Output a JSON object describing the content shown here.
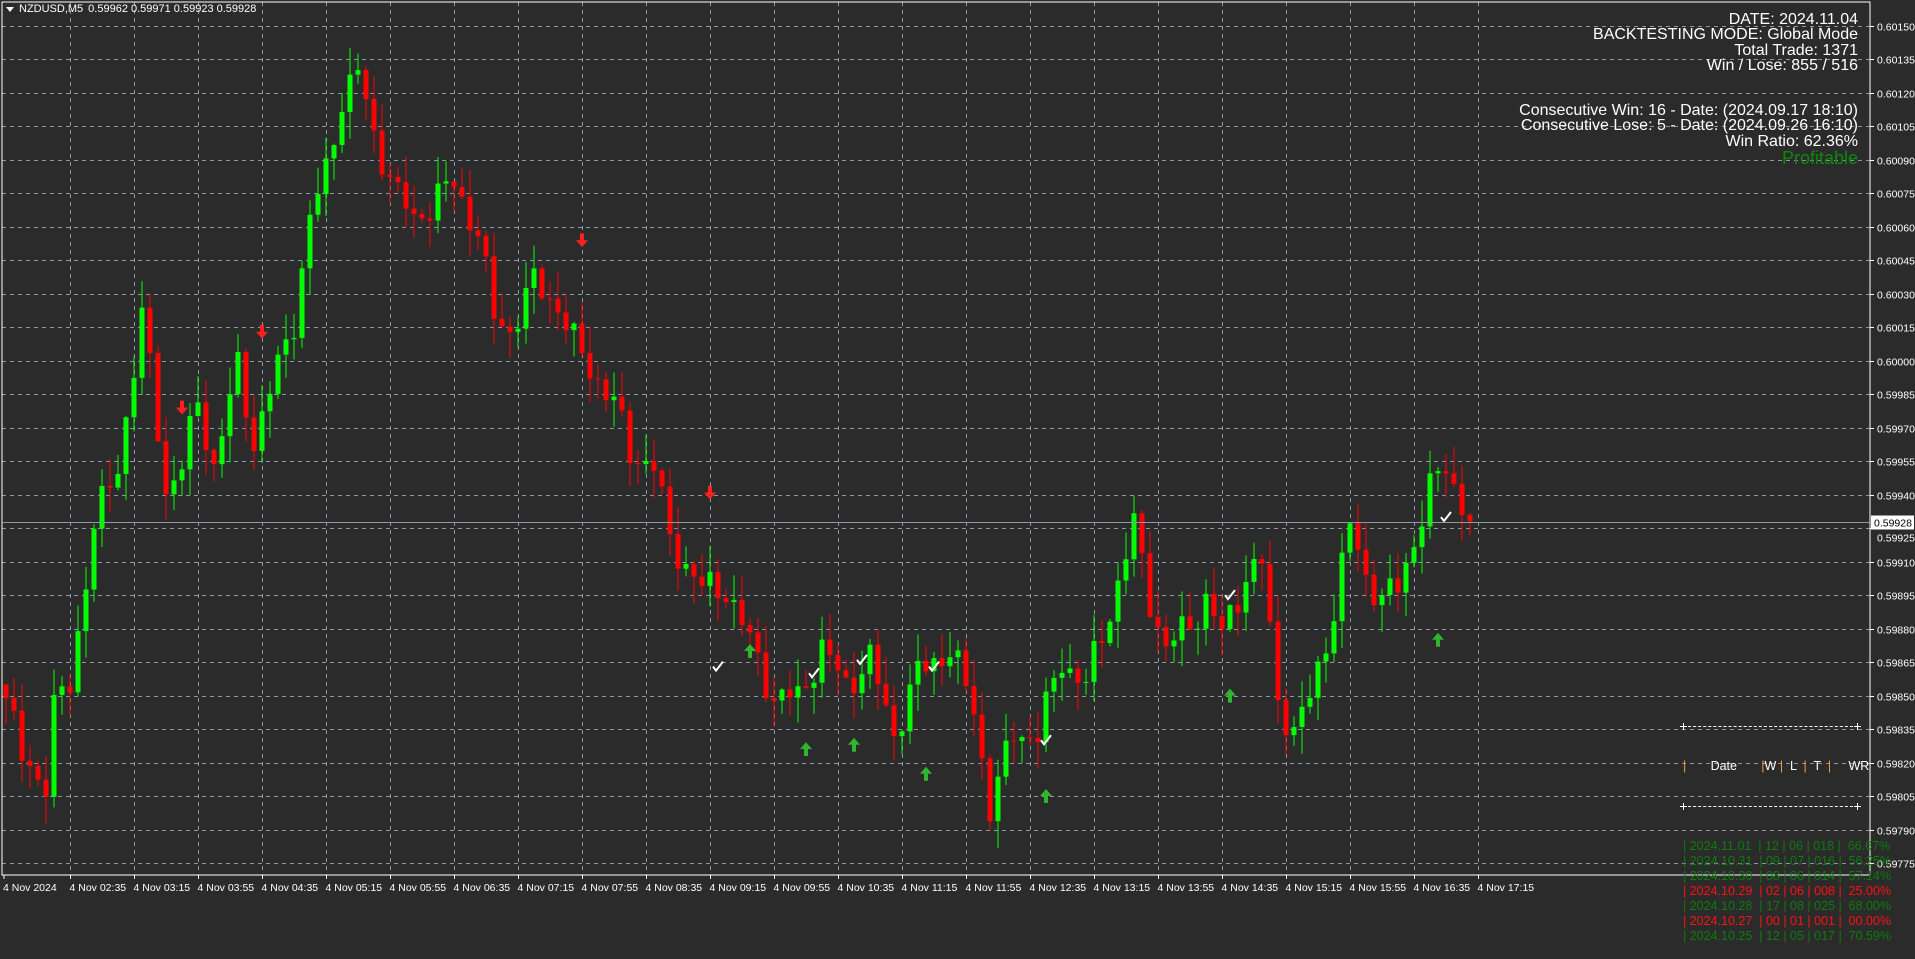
{
  "window": {
    "symbol": "NZDUSD,M5",
    "ohlc": "0.59962 0.59971 0.59923 0.59928",
    "menu_icon": "triangle-down-icon"
  },
  "info_panel": {
    "date": "DATE: 2024.11.04",
    "mode": "BACKTESTING MODE: Global Mode",
    "total_trade": "Total Trade: 1371",
    "win_lose": "Win / Lose: 855 / 516",
    "consecutive_win": "Consecutive Win: 16 - Date: (2024.09.17 18:10)",
    "consecutive_lose": "Consecutive Lose: 5 - Date: (2024.09.26 16:10)",
    "win_ratio": "Win Ratio: 62.36%",
    "status": "Profitable",
    "status_color": "#0a8a0a"
  },
  "stats_table": {
    "headers": [
      "Date",
      "W",
      "L",
      "T",
      "WR"
    ],
    "rows": [
      {
        "date": "2024.11.01",
        "w": "12",
        "l": "06",
        "t": "018",
        "wr": "66.67%",
        "result": "win"
      },
      {
        "date": "2024.10.31",
        "w": "09",
        "l": "07",
        "t": "016",
        "wr": "56.25%",
        "result": "win"
      },
      {
        "date": "2024.10.30",
        "w": "08",
        "l": "06",
        "t": "014",
        "wr": "57.14%",
        "result": "win"
      },
      {
        "date": "2024.10.29",
        "w": "02",
        "l": "06",
        "t": "008",
        "wr": "25.00%",
        "result": "lose"
      },
      {
        "date": "2024.10.28",
        "w": "17",
        "l": "08",
        "t": "025",
        "wr": "68.00%",
        "result": "win"
      },
      {
        "date": "2024.10.27",
        "w": "00",
        "l": "01",
        "t": "001",
        "wr": "00.00%",
        "result": "lose"
      },
      {
        "date": "2024.10.25",
        "w": "12",
        "l": "05",
        "t": "017",
        "wr": "70.59%",
        "result": "win"
      }
    ]
  },
  "chart_data": {
    "type": "candlestick",
    "symbol": "NZDUSD",
    "timeframe": "M5",
    "date": "4 Nov 2024",
    "current_price": 0.59928,
    "ylim": [
      0.5977,
      0.6016
    ],
    "grid": true,
    "colors": {
      "background": "#2b2b2b",
      "bull": "#00ff00",
      "bear": "#ff0000",
      "grid": "#8c96a6",
      "up_arrow": "#2fb52f",
      "down_arrow": "#ff2020"
    },
    "y_ticks": [
      "0.60150",
      "0.60135",
      "0.60120",
      "0.60105",
      "0.60090",
      "0.60075",
      "0.60060",
      "0.60045",
      "0.60030",
      "0.60015",
      "0.60000",
      "0.59985",
      "0.59970",
      "0.59955",
      "0.59940",
      "0.59925",
      "0.59910",
      "0.59895",
      "0.59880",
      "0.59865",
      "0.59850",
      "0.59835",
      "0.59820",
      "0.59805",
      "0.59790",
      "0.59775"
    ],
    "x_ticks": [
      "4 Nov 2024",
      "4 Nov 02:35",
      "4 Nov 03:15",
      "4 Nov 03:55",
      "4 Nov 04:35",
      "4 Nov 05:15",
      "4 Nov 05:55",
      "4 Nov 06:35",
      "4 Nov 07:15",
      "4 Nov 07:55",
      "4 Nov 08:35",
      "4 Nov 09:15",
      "4 Nov 09:55",
      "4 Nov 10:35",
      "4 Nov 11:15",
      "4 Nov 11:55",
      "4 Nov 12:35",
      "4 Nov 13:15",
      "4 Nov 13:55",
      "4 Nov 14:35",
      "4 Nov 15:15",
      "4 Nov 15:55",
      "4 Nov 16:35",
      "4 Nov 17:15"
    ],
    "closes": [
      [
        "01:55",
        0.59849
      ],
      [
        "02:05",
        0.59822
      ],
      [
        "02:20",
        0.59811
      ],
      [
        "02:25",
        0.59844
      ],
      [
        "02:35",
        0.59855
      ],
      [
        "02:50",
        0.59926
      ],
      [
        "03:05",
        0.59953
      ],
      [
        "03:20",
        0.60019
      ],
      [
        "03:25",
        0.59997
      ],
      [
        "03:35",
        0.59942
      ],
      [
        "03:45",
        0.59953
      ],
      [
        "03:55",
        0.59981
      ],
      [
        "04:05",
        0.59953
      ],
      [
        "04:20",
        0.59997
      ],
      [
        "04:30",
        0.59964
      ],
      [
        "04:45",
        0.59997
      ],
      [
        "04:55",
        0.60019
      ],
      [
        "05:05",
        0.60063
      ],
      [
        "05:15",
        0.60085
      ],
      [
        "05:25",
        0.60118
      ],
      [
        "05:35",
        0.60129
      ],
      [
        "05:45",
        0.60101
      ],
      [
        "06:00",
        0.60074
      ],
      [
        "06:10",
        0.60063
      ],
      [
        "06:25",
        0.60074
      ],
      [
        "06:35",
        0.60079
      ],
      [
        "06:50",
        0.60058
      ],
      [
        "07:00",
        0.60019
      ],
      [
        "07:10",
        0.60014
      ],
      [
        "07:25",
        0.60035
      ],
      [
        "07:40",
        0.60025
      ],
      [
        "07:50",
        0.60008
      ],
      [
        "08:00",
        0.59997
      ],
      [
        "08:15",
        0.59981
      ],
      [
        "08:25",
        0.59959
      ],
      [
        "08:40",
        0.59953
      ],
      [
        "08:50",
        0.5992
      ],
      [
        "09:00",
        0.59909
      ],
      [
        "09:10",
        0.59898
      ],
      [
        "09:25",
        0.59898
      ],
      [
        "09:35",
        0.59882
      ],
      [
        "09:45",
        0.59866
      ],
      [
        "09:55",
        0.59849
      ],
      [
        "10:10",
        0.59849
      ],
      [
        "10:25",
        0.59871
      ],
      [
        "10:40",
        0.59855
      ],
      [
        "10:55",
        0.59866
      ],
      [
        "11:10",
        0.59833
      ],
      [
        "11:25",
        0.5986
      ],
      [
        "11:45",
        0.59871
      ],
      [
        "12:00",
        0.59844
      ],
      [
        "12:10",
        0.598
      ],
      [
        "12:25",
        0.59833
      ],
      [
        "12:40",
        0.59833
      ],
      [
        "12:55",
        0.59866
      ],
      [
        "13:10",
        0.59855
      ],
      [
        "13:25",
        0.59888
      ],
      [
        "13:40",
        0.59926
      ],
      [
        "13:50",
        0.59893
      ],
      [
        "14:00",
        0.59871
      ],
      [
        "14:15",
        0.59882
      ],
      [
        "14:25",
        0.59893
      ],
      [
        "14:35",
        0.59877
      ],
      [
        "14:50",
        0.59904
      ],
      [
        "15:00",
        0.59909
      ],
      [
        "15:10",
        0.59849
      ],
      [
        "15:20",
        0.59833
      ],
      [
        "15:30",
        0.59849
      ],
      [
        "15:45",
        0.59888
      ],
      [
        "15:55",
        0.59926
      ],
      [
        "16:05",
        0.59904
      ],
      [
        "16:15",
        0.59893
      ],
      [
        "16:25",
        0.59898
      ],
      [
        "16:35",
        0.5992
      ],
      [
        "16:45",
        0.59942
      ],
      [
        "16:55",
        0.59953
      ],
      [
        "17:10",
        0.59928
      ]
    ],
    "signals": [
      {
        "type": "sell",
        "time": "03:45",
        "price": 0.59979
      },
      {
        "type": "sell",
        "time": "04:35",
        "price": 0.60013
      },
      {
        "type": "sell",
        "time": "07:55",
        "price": 0.60054
      },
      {
        "type": "sell",
        "time": "09:15",
        "price": 0.59941
      },
      {
        "type": "buy",
        "time": "09:40",
        "price": 0.5987
      },
      {
        "type": "buy",
        "time": "10:15",
        "price": 0.59826
      },
      {
        "type": "buy",
        "time": "10:45",
        "price": 0.59828
      },
      {
        "type": "buy",
        "time": "11:30",
        "price": 0.59815
      },
      {
        "type": "buy",
        "time": "12:45",
        "price": 0.59805
      },
      {
        "type": "buy",
        "time": "14:40",
        "price": 0.5985
      },
      {
        "type": "buy",
        "time": "16:50",
        "price": 0.59875
      },
      {
        "type": "win-check",
        "time": "09:20",
        "price": 0.59863
      },
      {
        "type": "win-check",
        "time": "10:20",
        "price": 0.5986
      },
      {
        "type": "win-check",
        "time": "10:50",
        "price": 0.59866
      },
      {
        "type": "win-check",
        "time": "11:35",
        "price": 0.59863
      },
      {
        "type": "win-check",
        "time": "12:45",
        "price": 0.5983
      },
      {
        "type": "win-check",
        "time": "14:40",
        "price": 0.59895
      },
      {
        "type": "win-check",
        "time": "16:55",
        "price": 0.5993
      }
    ]
  }
}
